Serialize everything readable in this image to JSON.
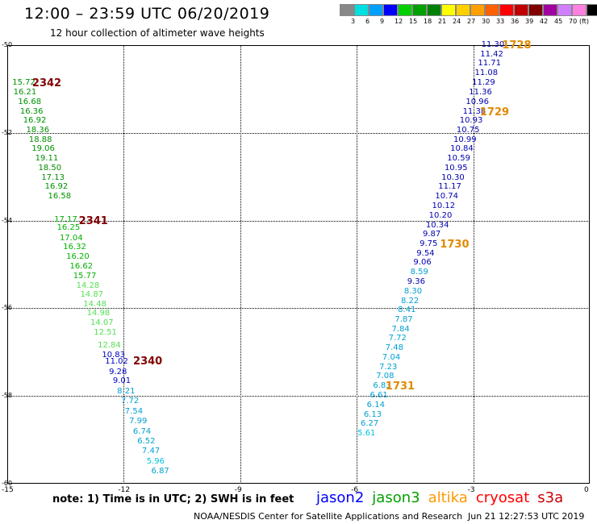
{
  "header": {
    "title": "12:00 – 23:59 UTC 06/20/2019",
    "subtitle": "12 hour collection of altimeter wave heights"
  },
  "colorbar": {
    "colors": [
      "#888888",
      "#00e0e0",
      "#00a0ff",
      "#0000ff",
      "#00d000",
      "#00a000",
      "#008000",
      "#ffff00",
      "#ffd000",
      "#ffa000",
      "#ff6000",
      "#ff0000",
      "#c00000",
      "#800000",
      "#a000a0",
      "#d080ff",
      "#ff80e0",
      "#000000"
    ],
    "ticks": [
      "3",
      "6",
      "9",
      "12",
      "15",
      "18",
      "21",
      "24",
      "27",
      "30",
      "33",
      "36",
      "39",
      "42",
      "45",
      "70"
    ],
    "unit": "(ft)"
  },
  "axes": {
    "y_ticks": [
      {
        "value": -50,
        "label": "-50"
      },
      {
        "value": -52,
        "label": "-52"
      },
      {
        "value": -54,
        "label": "-54"
      },
      {
        "value": -56,
        "label": "-56"
      },
      {
        "value": -58,
        "label": "-58"
      },
      {
        "value": -60,
        "label": "-60"
      }
    ],
    "x_ticks": [
      {
        "value": -15,
        "label": "-15"
      },
      {
        "value": -12,
        "label": "-12"
      },
      {
        "value": -9,
        "label": "-9"
      },
      {
        "value": -6,
        "label": "-6"
      },
      {
        "value": -3,
        "label": "-3"
      },
      {
        "value": 0,
        "label": "0"
      }
    ],
    "lon_range": [
      -15,
      0
    ],
    "lat_range": [
      -60,
      -50
    ]
  },
  "chart_data": {
    "type": "scatter",
    "tracks": [
      {
        "satellite": "jason3",
        "points": [
          {
            "lon": -14.58,
            "lat": -50.87,
            "swh": "15.72",
            "color": "#009000"
          },
          {
            "lon": -14.55,
            "lat": -51.08,
            "swh": "16.21",
            "color": "#009000"
          },
          {
            "lon": -14.43,
            "lat": -51.3,
            "swh": "16.68",
            "color": "#009000"
          },
          {
            "lon": -14.38,
            "lat": -51.52,
            "swh": "16.36",
            "color": "#009000"
          },
          {
            "lon": -14.3,
            "lat": -51.73,
            "swh": "16.92",
            "color": "#009000"
          },
          {
            "lon": -14.22,
            "lat": -51.95,
            "swh": "18.36",
            "color": "#009000"
          },
          {
            "lon": -14.15,
            "lat": -52.16,
            "swh": "18.88",
            "color": "#009000"
          },
          {
            "lon": -14.08,
            "lat": -52.38,
            "swh": "19.06",
            "color": "#009000"
          },
          {
            "lon": -13.99,
            "lat": -52.59,
            "swh": "19.11",
            "color": "#009000"
          },
          {
            "lon": -13.91,
            "lat": -52.81,
            "swh": "18.50",
            "color": "#009000"
          },
          {
            "lon": -13.83,
            "lat": -53.03,
            "swh": "17.13",
            "color": "#009000"
          },
          {
            "lon": -13.74,
            "lat": -53.24,
            "swh": "16.92",
            "color": "#009000"
          },
          {
            "lon": -13.66,
            "lat": -53.46,
            "swh": "16.58",
            "color": "#009000"
          },
          {
            "lon": -13.5,
            "lat": -53.98,
            "swh": "17.17",
            "color": "#00b000"
          },
          {
            "lon": -13.43,
            "lat": -54.17,
            "swh": "16.25",
            "color": "#00b000"
          },
          {
            "lon": -13.36,
            "lat": -54.41,
            "swh": "17.04",
            "color": "#00b000"
          },
          {
            "lon": -13.27,
            "lat": -54.62,
            "swh": "16.32",
            "color": "#00b000"
          },
          {
            "lon": -13.19,
            "lat": -54.84,
            "swh": "16.20",
            "color": "#00b000"
          },
          {
            "lon": -13.1,
            "lat": -55.05,
            "swh": "16.62",
            "color": "#00b000"
          },
          {
            "lon": -13.01,
            "lat": -55.27,
            "swh": "15.77",
            "color": "#00b000"
          },
          {
            "lon": -12.93,
            "lat": -55.49,
            "swh": "14.28",
            "color": "#55e055"
          },
          {
            "lon": -12.83,
            "lat": -55.7,
            "swh": "14.87",
            "color": "#55e055"
          },
          {
            "lon": -12.75,
            "lat": -55.92,
            "swh": "14.48",
            "color": "#55e055"
          },
          {
            "lon": -12.66,
            "lat": -56.13,
            "swh": "14.98",
            "color": "#55e055"
          },
          {
            "lon": -12.57,
            "lat": -56.35,
            "swh": "14.07",
            "color": "#55e055"
          },
          {
            "lon": -12.48,
            "lat": -56.57,
            "swh": "12.51",
            "color": "#55e055"
          },
          {
            "lon": -12.38,
            "lat": -56.85,
            "swh": "12.84",
            "color": "#55e055"
          },
          {
            "lon": -12.27,
            "lat": -57.08,
            "swh": "10.83",
            "color": "#0000c0"
          },
          {
            "lon": -12.19,
            "lat": -57.23,
            "swh": "11.02",
            "color": "#0000c0"
          },
          {
            "lon": -12.09,
            "lat": -57.47,
            "swh": "9.28",
            "color": "#0000c0"
          },
          {
            "lon": -11.99,
            "lat": -57.67,
            "swh": "9.01",
            "color": "#0000c0"
          },
          {
            "lon": -11.88,
            "lat": -57.9,
            "swh": "8.21",
            "color": "#00a0d0"
          },
          {
            "lon": -11.78,
            "lat": -58.13,
            "swh": "7.72",
            "color": "#00a0d0"
          },
          {
            "lon": -11.68,
            "lat": -58.36,
            "swh": "7.54",
            "color": "#00a0d0"
          },
          {
            "lon": -11.57,
            "lat": -58.59,
            "swh": "7.99",
            "color": "#00a0d0"
          },
          {
            "lon": -11.47,
            "lat": -58.82,
            "swh": "6.74",
            "color": "#00a0d0"
          },
          {
            "lon": -11.36,
            "lat": -59.05,
            "swh": "6.52",
            "color": "#00a0d0"
          },
          {
            "lon": -11.24,
            "lat": -59.27,
            "swh": "7.47",
            "color": "#00a0d0"
          },
          {
            "lon": -11.12,
            "lat": -59.5,
            "swh": "5.96",
            "color": "#00c0e0"
          },
          {
            "lon": -11.0,
            "lat": -59.73,
            "swh": "6.87",
            "color": "#00a0d0"
          }
        ],
        "time_labels": [
          {
            "text": "2342",
            "lon": -14.15,
            "lat": -50.87
          },
          {
            "text": "2341",
            "lon": -12.95,
            "lat": -54.0
          },
          {
            "text": "2340",
            "lon": -11.55,
            "lat": -57.2
          }
        ]
      },
      {
        "satellite": "jason2",
        "points": [
          {
            "lon": -2.5,
            "lat": -50.0,
            "swh": "11.30",
            "color": "#0000b0"
          },
          {
            "lon": -2.53,
            "lat": -50.22,
            "swh": "11.42",
            "color": "#0000b0"
          },
          {
            "lon": -2.59,
            "lat": -50.43,
            "swh": "11.71",
            "color": "#0000b0"
          },
          {
            "lon": -2.67,
            "lat": -50.65,
            "swh": "11.08",
            "color": "#0000b0"
          },
          {
            "lon": -2.74,
            "lat": -50.87,
            "swh": "11.29",
            "color": "#0000b0"
          },
          {
            "lon": -2.82,
            "lat": -51.08,
            "swh": "11.36",
            "color": "#0000b0"
          },
          {
            "lon": -2.9,
            "lat": -51.3,
            "swh": "10.96",
            "color": "#0000b0"
          },
          {
            "lon": -2.98,
            "lat": -51.52,
            "swh": "11.38",
            "color": "#0000b0"
          },
          {
            "lon": -3.06,
            "lat": -51.73,
            "swh": "10.93",
            "color": "#0000b0"
          },
          {
            "lon": -3.14,
            "lat": -51.95,
            "swh": "10.75",
            "color": "#0000b0"
          },
          {
            "lon": -3.22,
            "lat": -52.16,
            "swh": "10.99",
            "color": "#0000b0"
          },
          {
            "lon": -3.3,
            "lat": -52.38,
            "swh": "10.84",
            "color": "#0000b0"
          },
          {
            "lon": -3.38,
            "lat": -52.59,
            "swh": "10.59",
            "color": "#0000b0"
          },
          {
            "lon": -3.45,
            "lat": -52.81,
            "swh": "10.95",
            "color": "#0000b0"
          },
          {
            "lon": -3.53,
            "lat": -53.03,
            "swh": "10.30",
            "color": "#0000b0"
          },
          {
            "lon": -3.61,
            "lat": -53.24,
            "swh": "11.17",
            "color": "#0000b0"
          },
          {
            "lon": -3.69,
            "lat": -53.46,
            "swh": "10.74",
            "color": "#0000b0"
          },
          {
            "lon": -3.77,
            "lat": -53.68,
            "swh": "10.12",
            "color": "#0000b0"
          },
          {
            "lon": -3.85,
            "lat": -53.89,
            "swh": "10.20",
            "color": "#0000b0"
          },
          {
            "lon": -3.93,
            "lat": -54.11,
            "swh": "10.34",
            "color": "#0000b0"
          },
          {
            "lon": -4.01,
            "lat": -54.32,
            "swh": "9.87",
            "color": "#0000b0"
          },
          {
            "lon": -4.09,
            "lat": -54.54,
            "swh": "9.75",
            "color": "#0000b0"
          },
          {
            "lon": -4.17,
            "lat": -54.76,
            "swh": "9.54",
            "color": "#0000b0"
          },
          {
            "lon": -4.25,
            "lat": -54.97,
            "swh": "9.06",
            "color": "#0000b0"
          },
          {
            "lon": -4.33,
            "lat": -55.19,
            "swh": "8.59",
            "color": "#00a0d0"
          },
          {
            "lon": -4.41,
            "lat": -55.4,
            "swh": "9.36",
            "color": "#0000b0"
          },
          {
            "lon": -4.49,
            "lat": -55.62,
            "swh": "8.30",
            "color": "#00a0d0"
          },
          {
            "lon": -4.57,
            "lat": -55.84,
            "swh": "8.22",
            "color": "#00a0d0"
          },
          {
            "lon": -4.65,
            "lat": -56.05,
            "swh": "8.41",
            "color": "#00a0d0"
          },
          {
            "lon": -4.73,
            "lat": -56.27,
            "swh": "7.87",
            "color": "#00a0d0"
          },
          {
            "lon": -4.81,
            "lat": -56.48,
            "swh": "7.84",
            "color": "#00a0d0"
          },
          {
            "lon": -4.89,
            "lat": -56.7,
            "swh": "7.72",
            "color": "#00a0d0"
          },
          {
            "lon": -4.97,
            "lat": -56.92,
            "swh": "7.48",
            "color": "#00a0d0"
          },
          {
            "lon": -5.05,
            "lat": -57.13,
            "swh": "7.04",
            "color": "#00a0d0"
          },
          {
            "lon": -5.13,
            "lat": -57.35,
            "swh": "7.23",
            "color": "#00a0d0"
          },
          {
            "lon": -5.21,
            "lat": -57.56,
            "swh": "7.08",
            "color": "#00a0d0"
          },
          {
            "lon": -5.29,
            "lat": -57.78,
            "swh": "6.83",
            "color": "#00a0d0"
          },
          {
            "lon": -5.37,
            "lat": -58.0,
            "swh": "6.61",
            "color": "#00a0d0"
          },
          {
            "lon": -5.45,
            "lat": -58.21,
            "swh": "6.14",
            "color": "#00a0d0"
          },
          {
            "lon": -5.53,
            "lat": -58.43,
            "swh": "6.13",
            "color": "#00a0d0"
          },
          {
            "lon": -5.61,
            "lat": -58.64,
            "swh": "6.27",
            "color": "#00a0d0"
          },
          {
            "lon": -5.69,
            "lat": -58.86,
            "swh": "5.61",
            "color": "#00c0e0"
          }
        ],
        "time_labels": [
          {
            "text": "1728",
            "lon": -2.05,
            "lat": -50.0
          },
          {
            "text": "1729",
            "lon": -2.62,
            "lat": -51.52
          },
          {
            "text": "1730",
            "lon": -3.65,
            "lat": -54.54
          },
          {
            "text": "1731",
            "lon": -5.05,
            "lat": -57.78
          }
        ]
      }
    ]
  },
  "footer": {
    "note": "note:  1) Time is in UTC;  2) SWH is in feet",
    "legend": [
      {
        "name": "jason2",
        "color": "#0000ff"
      },
      {
        "name": "jason3",
        "color": "#00a000"
      },
      {
        "name": "altika",
        "color": "#ff9900"
      },
      {
        "name": "cryosat",
        "color": "#ff0000"
      },
      {
        "name": "s3a",
        "color": "#cc0000"
      }
    ],
    "time_label_color": "#e08a00",
    "time_label_color_jason3": "#800000",
    "credit": "NOAA/NESDIS Center for Satellite Applications and Research",
    "timestamp": "Jun 21 12:27:53 UTC 2019"
  }
}
